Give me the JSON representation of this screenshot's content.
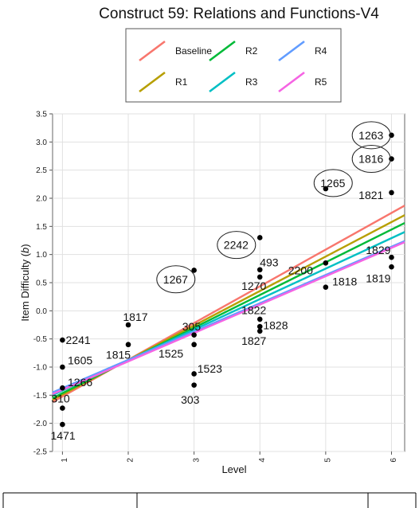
{
  "chart_data": {
    "type": "scatter",
    "title": "Construct 59: Relations and Functions-V4",
    "xlabel": "Level",
    "ylabel": "Item Difficulty (b)",
    "xlim": [
      0.85,
      6.2
    ],
    "ylim": [
      -2.5,
      3.5
    ],
    "x_ticks": [
      1,
      2,
      3,
      4,
      5,
      6
    ],
    "y_ticks": [
      "-2.5",
      "-2.0",
      "-1.5",
      "-1.0",
      "-0.5",
      "0.0",
      "0.5",
      "1.0",
      "1.5",
      "2.0",
      "2.5",
      "3.0",
      "3.5"
    ],
    "grid": true,
    "legend_placement": "top-center",
    "series": [
      {
        "name": "Baseline",
        "color": "#f8766d",
        "x": [
          0.85,
          6.2
        ],
        "y": [
          -1.62,
          1.87
        ]
      },
      {
        "name": "R1",
        "color": "#b79f00",
        "x": [
          0.85,
          6.2
        ],
        "y": [
          -1.58,
          1.7
        ]
      },
      {
        "name": "R2",
        "color": "#00ba38",
        "x": [
          0.85,
          6.2
        ],
        "y": [
          -1.55,
          1.56
        ]
      },
      {
        "name": "R3",
        "color": "#00bfc4",
        "x": [
          0.85,
          6.2
        ],
        "y": [
          -1.5,
          1.4
        ]
      },
      {
        "name": "R4",
        "color": "#619cff",
        "x": [
          0.85,
          6.2
        ],
        "y": [
          -1.45,
          1.24
        ]
      },
      {
        "name": "R5",
        "color": "#f564e3",
        "x": [
          0.85,
          6.2
        ],
        "y": [
          -1.48,
          1.22
        ]
      }
    ],
    "points": [
      {
        "label": "2241",
        "x": 1,
        "y": -0.52,
        "lx": 1.05,
        "ly": -0.52,
        "anchor": "start"
      },
      {
        "label": "1605",
        "x": 1,
        "y": -1.0,
        "lx": 1.08,
        "ly": -0.88,
        "anchor": "start"
      },
      {
        "label": "1266",
        "x": 1,
        "y": -1.37,
        "lx": 1.08,
        "ly": -1.27,
        "anchor": "start"
      },
      {
        "label": "310",
        "x": 1,
        "y": -1.73,
        "lx": 0.83,
        "ly": -1.56,
        "anchor": "start"
      },
      {
        "label": "1471",
        "x": 1,
        "y": -2.02,
        "lx": 0.82,
        "ly": -2.22,
        "anchor": "start"
      },
      {
        "label": "1817",
        "x": 2,
        "y": -0.25,
        "lx": 1.92,
        "ly": -0.11,
        "anchor": "start"
      },
      {
        "label": "1815",
        "x": 2,
        "y": -0.6,
        "lx": 1.66,
        "ly": -0.78,
        "anchor": "start"
      },
      {
        "label": "1267",
        "x": 3,
        "y": 0.72,
        "lx": 2.53,
        "ly": 0.56,
        "anchor": "start"
      },
      {
        "label": "305",
        "x": 3,
        "y": -0.43,
        "lx": 2.82,
        "ly": -0.28,
        "anchor": "start"
      },
      {
        "label": "1525",
        "x": 3,
        "y": -0.6,
        "lx": 2.46,
        "ly": -0.76,
        "anchor": "start"
      },
      {
        "label": "1523",
        "x": 3,
        "y": -1.12,
        "lx": 3.05,
        "ly": -1.03,
        "anchor": "start"
      },
      {
        "label": "303",
        "x": 3,
        "y": -1.32,
        "lx": 2.8,
        "ly": -1.58,
        "anchor": "start"
      },
      {
        "label": "2242",
        "x": 4,
        "y": 1.3,
        "lx": 3.45,
        "ly": 1.17,
        "anchor": "start"
      },
      {
        "label": "493",
        "x": 4,
        "y": 0.73,
        "lx": 4.0,
        "ly": 0.86,
        "anchor": "start"
      },
      {
        "label": "1270",
        "x": 4,
        "y": 0.6,
        "lx": 3.72,
        "ly": 0.44,
        "anchor": "start"
      },
      {
        "label": "1822",
        "x": 4,
        "y": -0.15,
        "lx": 3.72,
        "ly": 0.01,
        "anchor": "start"
      },
      {
        "label": "1828",
        "x": 4,
        "y": -0.28,
        "lx": 4.05,
        "ly": -0.26,
        "anchor": "start"
      },
      {
        "label": "1827",
        "x": 4,
        "y": -0.36,
        "lx": 3.72,
        "ly": -0.53,
        "anchor": "start"
      },
      {
        "label": "1265",
        "x": 5,
        "y": 2.17,
        "lx": 4.92,
        "ly": 2.27,
        "anchor": "start"
      },
      {
        "label": "2200",
        "x": 5,
        "y": 0.85,
        "lx": 4.43,
        "ly": 0.72,
        "anchor": "start"
      },
      {
        "label": "1818",
        "x": 5,
        "y": 0.42,
        "lx": 5.1,
        "ly": 0.52,
        "anchor": "start"
      },
      {
        "label": "1263",
        "x": 6,
        "y": 3.12,
        "lx": 5.5,
        "ly": 3.12,
        "anchor": "start"
      },
      {
        "label": "1816",
        "x": 6,
        "y": 2.7,
        "lx": 5.5,
        "ly": 2.7,
        "anchor": "start"
      },
      {
        "label": "1821",
        "x": 6,
        "y": 2.1,
        "lx": 5.5,
        "ly": 2.06,
        "anchor": "start"
      },
      {
        "label": "1829",
        "x": 6,
        "y": 0.95,
        "lx": 5.61,
        "ly": 1.08,
        "anchor": "start"
      },
      {
        "label": "1819",
        "x": 6,
        "y": 0.78,
        "lx": 5.61,
        "ly": 0.58,
        "anchor": "start"
      }
    ],
    "highlighted": [
      "1267",
      "2242",
      "1265",
      "1263",
      "1816"
    ]
  }
}
